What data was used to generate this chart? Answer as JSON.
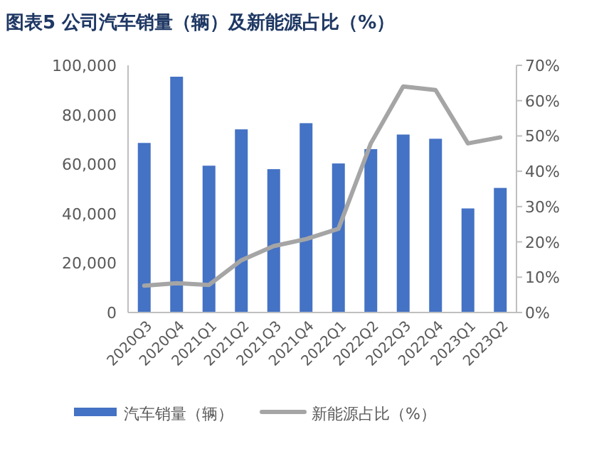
{
  "chart_data": {
    "type": "bar",
    "title": "图表5 公司汽车销量（辆）及新能源占比（%）",
    "categories": [
      "2020Q3",
      "2020Q4",
      "2021Q1",
      "2021Q2",
      "2021Q3",
      "2021Q4",
      "2022Q1",
      "2022Q2",
      "2022Q3",
      "2022Q4",
      "2023Q1",
      "2023Q2"
    ],
    "series": [
      {
        "name": "汽车销量（辆）",
        "color": "#4472c4",
        "values": [
          68600,
          95400,
          59400,
          74100,
          58000,
          76600,
          60300,
          66100,
          72000,
          70300,
          42100,
          50400
        ]
      },
      {
        "name": "新能源占比（%）",
        "type": "line",
        "axis": "y2",
        "color": "#a5a5a5",
        "values": [
          7.6,
          8.3,
          7.8,
          14.8,
          18.8,
          20.8,
          23.7,
          47.9,
          64.0,
          63.0,
          47.9,
          49.6
        ]
      }
    ],
    "ylim": [
      0,
      100000
    ],
    "yticks": [
      {
        "value": 0,
        "label": "0"
      },
      {
        "value": 20000,
        "label": "20,000"
      },
      {
        "value": 40000,
        "label": "40,000"
      },
      {
        "value": 60000,
        "label": "60,000"
      },
      {
        "value": 80000,
        "label": "80,000"
      },
      {
        "value": 100000,
        "label": "100,000"
      }
    ],
    "y2lim": [
      0,
      70
    ],
    "y2ticks": [
      {
        "value": 0,
        "label": "0%"
      },
      {
        "value": 10,
        "label": "10%"
      },
      {
        "value": 20,
        "label": "20%"
      },
      {
        "value": 30,
        "label": "30%"
      },
      {
        "value": 40,
        "label": "40%"
      },
      {
        "value": 50,
        "label": "50%"
      },
      {
        "value": 60,
        "label": "60%"
      },
      {
        "value": 70,
        "label": "70%"
      }
    ],
    "legend": "bottom"
  }
}
